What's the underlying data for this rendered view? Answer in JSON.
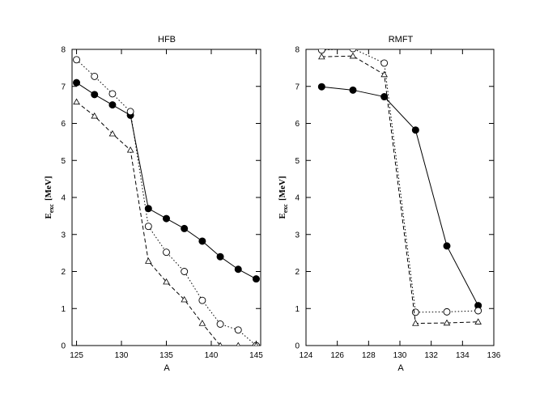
{
  "chart_data": [
    {
      "type": "line",
      "title": "HFB",
      "xlabel": "A",
      "ylabel": "E",
      "ylabel_sub": "exc",
      "ylabel_unit": "[MeV]",
      "xlim": [
        124.5,
        145.5
      ],
      "ylim": [
        0,
        8
      ],
      "xticks": [
        125,
        130,
        135,
        140,
        145
      ],
      "yticks": [
        0,
        1,
        2,
        3,
        4,
        5,
        6,
        7,
        8
      ],
      "grid": false,
      "series": [
        {
          "marker": "filled-circle",
          "line": "solid",
          "x": [
            125,
            127,
            129,
            131,
            133,
            135,
            137,
            139,
            141,
            143,
            145
          ],
          "y": [
            7.1,
            6.78,
            6.5,
            6.22,
            3.7,
            3.43,
            3.16,
            2.82,
            2.4,
            2.06,
            1.8
          ]
        },
        {
          "marker": "open-circle",
          "line": "dotted",
          "x": [
            125,
            127,
            129,
            131,
            133,
            135,
            137,
            139,
            141,
            143,
            145
          ],
          "y": [
            7.72,
            7.27,
            6.8,
            6.32,
            3.22,
            2.52,
            2.0,
            1.22,
            0.58,
            0.42,
            0.0
          ]
        },
        {
          "marker": "open-triangle",
          "line": "dashed",
          "x": [
            125,
            127,
            129,
            131,
            133,
            135,
            137,
            139,
            141,
            143,
            145
          ],
          "y": [
            6.58,
            6.2,
            5.72,
            5.28,
            2.28,
            1.72,
            1.24,
            0.6,
            0.0,
            0.0,
            0.0
          ]
        }
      ]
    },
    {
      "type": "line",
      "title": "RMFT",
      "xlabel": "A",
      "ylabel": "E",
      "ylabel_sub": "exc",
      "ylabel_unit": "[MeV]",
      "xlim": [
        124,
        136
      ],
      "ylim": [
        0,
        8
      ],
      "xticks": [
        124,
        126,
        128,
        130,
        132,
        134,
        136
      ],
      "yticks": [
        0,
        1,
        2,
        3,
        4,
        5,
        6,
        7,
        8
      ],
      "grid": false,
      "series": [
        {
          "marker": "filled-circle",
          "line": "solid",
          "x": [
            125,
            127,
            129,
            131,
            133,
            135
          ],
          "y": [
            6.99,
            6.9,
            6.72,
            5.82,
            2.69,
            1.08
          ]
        },
        {
          "marker": "open-circle",
          "line": "dotted",
          "x": [
            125,
            127,
            129,
            131,
            133,
            135
          ],
          "y": [
            7.98,
            8.02,
            7.63,
            0.9,
            0.91,
            0.94
          ]
        },
        {
          "marker": "open-triangle",
          "line": "dashed",
          "x": [
            125,
            127,
            129,
            131,
            133,
            135
          ],
          "y": [
            7.8,
            7.82,
            7.32,
            0.6,
            0.61,
            0.64
          ]
        }
      ]
    }
  ]
}
